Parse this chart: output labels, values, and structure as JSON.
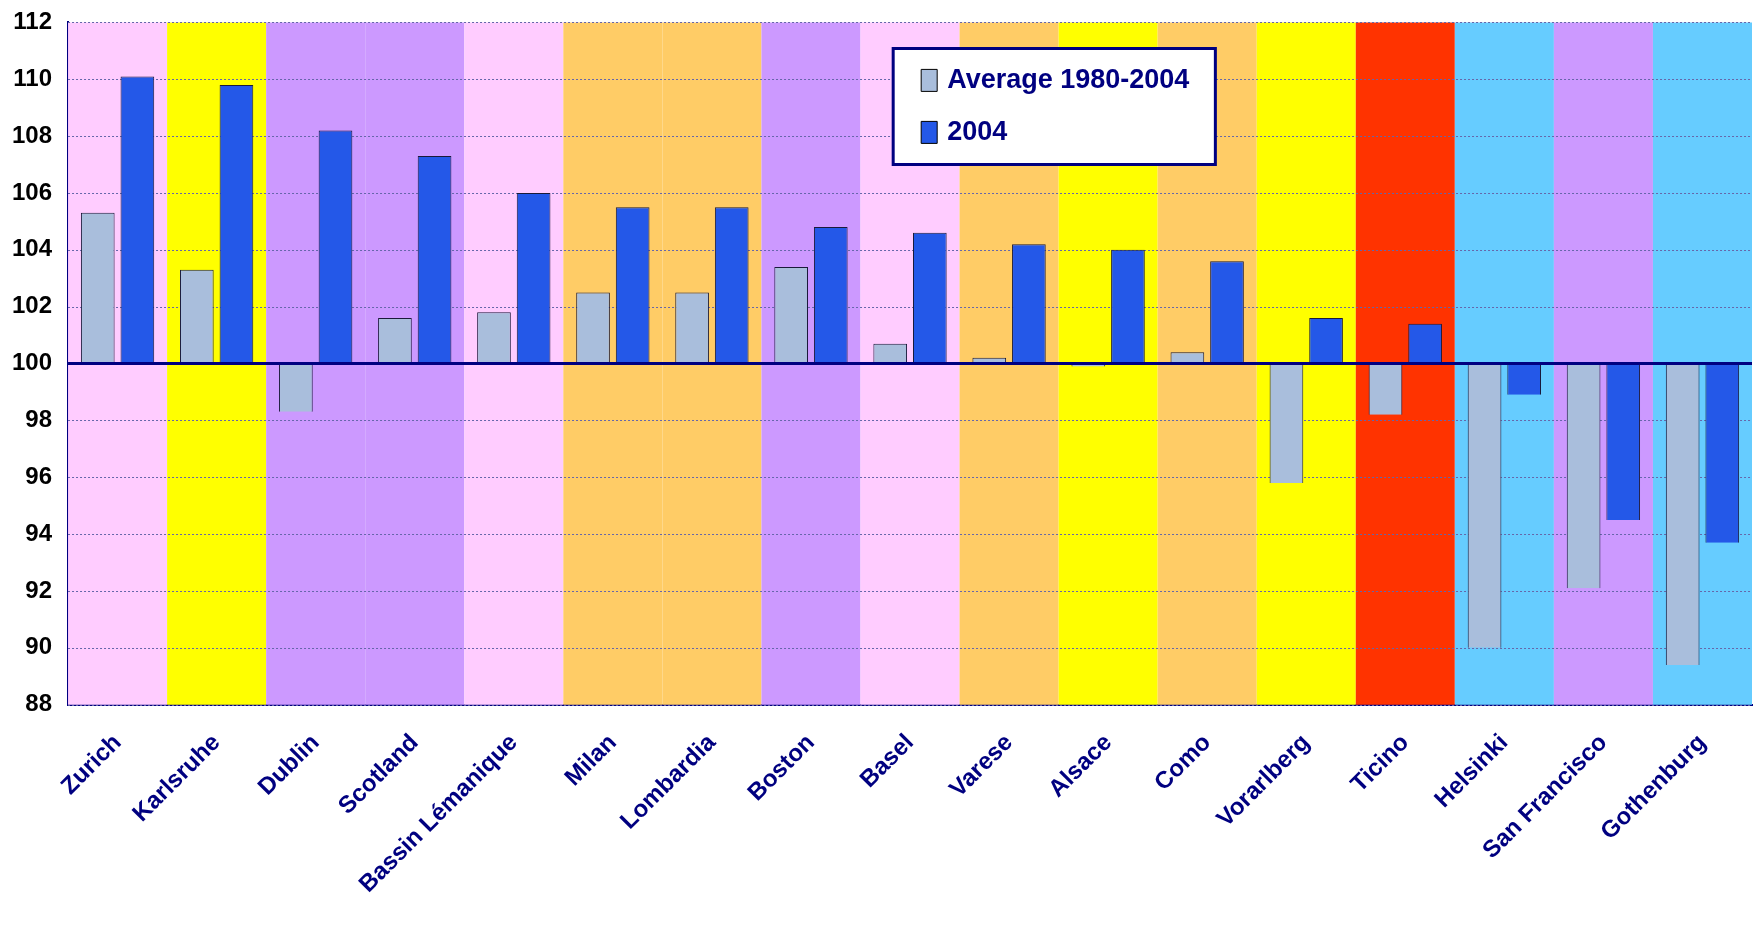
{
  "chart_data": {
    "type": "bar",
    "categories": [
      "Zurich",
      "Karlsruhe",
      "Dublin",
      "Scotland",
      "Bassin Lémanique",
      "Milan",
      "Lombardia",
      "Boston",
      "Basel",
      "Varese",
      "Alsace",
      "Como",
      "Vorarlberg",
      "Ticino",
      "Helsinki",
      "San Francisco",
      "Gothenburg"
    ],
    "series": [
      {
        "name": "Average 1980-2004",
        "color": "#a9bedc",
        "base": [
          100,
          100,
          100,
          100,
          100,
          100,
          100,
          100,
          100,
          100,
          100,
          100,
          100,
          100,
          100,
          100,
          100
        ],
        "values": [
          5.3,
          3.3,
          -1.7,
          1.6,
          1.8,
          2.5,
          2.5,
          3.4,
          0.7,
          0.2,
          -0.1,
          0.4,
          -4.2,
          -1.8,
          -10.0,
          -7.9,
          -10.6
        ]
      },
      {
        "name": "2004",
        "color": "#2458e8",
        "base": [
          100,
          100,
          100,
          100,
          100,
          100,
          100,
          100,
          100,
          100,
          100,
          100,
          100,
          100,
          100,
          100,
          100
        ],
        "values": [
          10.1,
          9.8,
          8.2,
          7.3,
          6.0,
          5.5,
          5.5,
          4.8,
          4.6,
          4.2,
          4.0,
          3.6,
          1.6,
          1.4,
          -1.1,
          -5.5,
          -6.3
        ]
      }
    ],
    "ylim": [
      88,
      112
    ],
    "yticks": [
      88,
      90,
      92,
      94,
      96,
      98,
      100,
      102,
      104,
      106,
      108,
      110,
      112
    ],
    "ref_lines": [
      {
        "axis": "y",
        "value": 100,
        "color": "#000080"
      }
    ],
    "bands": [
      {
        "axis": "x",
        "from": "Zurich",
        "to": "Zurich",
        "color": "#ffccff"
      },
      {
        "axis": "x",
        "from": "Karlsruhe",
        "to": "Karlsruhe",
        "color": "#ffff00"
      },
      {
        "axis": "x",
        "from": "Dublin",
        "to": "Dublin",
        "color": "#cc99ff"
      },
      {
        "axis": "x",
        "from": "Scotland",
        "to": "Scotland",
        "color": "#cc99ff"
      },
      {
        "axis": "x",
        "from": "Bassin Lémanique",
        "to": "Bassin Lémanique",
        "color": "#ffccff"
      },
      {
        "axis": "x",
        "from": "Milan",
        "to": "Milan",
        "color": "#ffcc66"
      },
      {
        "axis": "x",
        "from": "Lombardia",
        "to": "Lombardia",
        "color": "#ffcc66"
      },
      {
        "axis": "x",
        "from": "Boston",
        "to": "Boston",
        "color": "#cc99ff"
      },
      {
        "axis": "x",
        "from": "Basel",
        "to": "Basel",
        "color": "#ffccff"
      },
      {
        "axis": "x",
        "from": "Varese",
        "to": "Varese",
        "color": "#ffcc66"
      },
      {
        "axis": "x",
        "from": "Alsace",
        "to": "Alsace",
        "color": "#ffff00"
      },
      {
        "axis": "x",
        "from": "Como",
        "to": "Como",
        "color": "#ffcc66"
      },
      {
        "axis": "x",
        "from": "Vorarlberg",
        "to": "Vorarlberg",
        "color": "#ffff00"
      },
      {
        "axis": "x",
        "from": "Ticino",
        "to": "Ticino",
        "color": "#ff3300"
      },
      {
        "axis": "x",
        "from": "Helsinki",
        "to": "Helsinki",
        "color": "#66ccff"
      },
      {
        "axis": "x",
        "from": "San Francisco",
        "to": "San Francisco",
        "color": "#cc99ff"
      },
      {
        "axis": "x",
        "from": "Gothenburg",
        "to": "Gothenburg",
        "color": "#66ccff"
      }
    ],
    "grid": "y",
    "legend": "top"
  }
}
